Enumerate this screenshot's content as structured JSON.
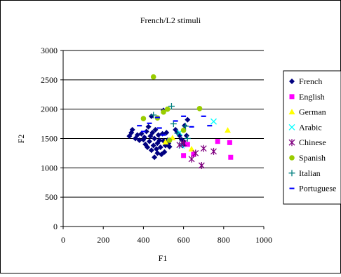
{
  "chart_data": {
    "type": "scatter",
    "title": "French/L2 stimuli",
    "xlabel": "F1",
    "ylabel": "F2",
    "xlim": [
      0,
      1000
    ],
    "ylim": [
      0,
      3000
    ],
    "xticks": [
      0,
      200,
      400,
      600,
      800,
      1000
    ],
    "yticks": [
      0,
      500,
      1000,
      1500,
      2000,
      2500,
      3000
    ],
    "grid": "horizontal",
    "legend_position": "right",
    "series": [
      {
        "name": "French",
        "marker": "diamond",
        "color": "#000080",
        "points": [
          [
            330,
            1540
          ],
          [
            340,
            1600
          ],
          [
            345,
            1650
          ],
          [
            360,
            1500
          ],
          [
            370,
            1560
          ],
          [
            380,
            1470
          ],
          [
            390,
            1580
          ],
          [
            400,
            1480
          ],
          [
            405,
            1520
          ],
          [
            410,
            1400
          ],
          [
            415,
            1620
          ],
          [
            420,
            1350
          ],
          [
            425,
            1700
          ],
          [
            430,
            1450
          ],
          [
            435,
            1540
          ],
          [
            440,
            1880
          ],
          [
            440,
            1300
          ],
          [
            445,
            1600
          ],
          [
            450,
            1380
          ],
          [
            455,
            1500
          ],
          [
            455,
            1180
          ],
          [
            460,
            1650
          ],
          [
            465,
            1320
          ],
          [
            470,
            1420
          ],
          [
            470,
            1250
          ],
          [
            475,
            1560
          ],
          [
            480,
            1470
          ],
          [
            485,
            1350
          ],
          [
            490,
            1230
          ],
          [
            495,
            1580
          ],
          [
            500,
            1460
          ],
          [
            500,
            1980
          ],
          [
            505,
            1270
          ],
          [
            510,
            1380
          ],
          [
            515,
            1600
          ],
          [
            520,
            1470
          ],
          [
            525,
            1420
          ],
          [
            530,
            1360
          ],
          [
            560,
            1650
          ],
          [
            570,
            1600
          ],
          [
            580,
            1550
          ],
          [
            590,
            1480
          ],
          [
            595,
            1380
          ],
          [
            600,
            1450
          ],
          [
            605,
            1720
          ],
          [
            610,
            1400
          ],
          [
            615,
            1550
          ],
          [
            620,
            1820
          ]
        ]
      },
      {
        "name": "English",
        "marker": "square",
        "color": "#ff00ff",
        "points": [
          [
            600,
            1210
          ],
          [
            620,
            1400
          ],
          [
            650,
            1230
          ],
          [
            770,
            1450
          ],
          [
            830,
            1430
          ],
          [
            835,
            1180
          ]
        ]
      },
      {
        "name": "German",
        "marker": "triangle",
        "color": "#ffff00",
        "points": [
          [
            510,
            1440
          ],
          [
            545,
            1510
          ],
          [
            640,
            1320
          ],
          [
            820,
            1640
          ]
        ]
      },
      {
        "name": "Arabic",
        "marker": "x",
        "color": "#00ffff",
        "points": [
          [
            580,
            1600
          ],
          [
            590,
            1380
          ],
          [
            750,
            1790
          ]
        ]
      },
      {
        "name": "Chinese",
        "marker": "star",
        "color": "#800080",
        "points": [
          [
            580,
            1390
          ],
          [
            600,
            1420
          ],
          [
            640,
            1150
          ],
          [
            660,
            1250
          ],
          [
            690,
            1040
          ],
          [
            700,
            1330
          ],
          [
            750,
            1280
          ]
        ]
      },
      {
        "name": "Spanish",
        "marker": "circle",
        "color": "#99cc00",
        "points": [
          [
            400,
            1840
          ],
          [
            450,
            2550
          ],
          [
            470,
            1850
          ],
          [
            500,
            1950
          ],
          [
            520,
            2000
          ],
          [
            530,
            1470
          ],
          [
            600,
            1640
          ],
          [
            680,
            2010
          ]
        ]
      },
      {
        "name": "Italian",
        "marker": "plus",
        "color": "#008080",
        "points": [
          [
            450,
            1900
          ],
          [
            540,
            2050
          ],
          [
            550,
            1750
          ],
          [
            570,
            1590
          ],
          [
            610,
            1710
          ],
          [
            620,
            1500
          ]
        ]
      },
      {
        "name": "Portuguese",
        "marker": "dash",
        "color": "#0000ff",
        "points": [
          [
            380,
            1720
          ],
          [
            400,
            1620
          ],
          [
            430,
            1760
          ],
          [
            470,
            1860
          ],
          [
            480,
            1680
          ],
          [
            500,
            1560
          ],
          [
            560,
            1800
          ],
          [
            600,
            1880
          ],
          [
            640,
            1700
          ],
          [
            700,
            1880
          ],
          [
            730,
            1720
          ]
        ]
      }
    ]
  }
}
